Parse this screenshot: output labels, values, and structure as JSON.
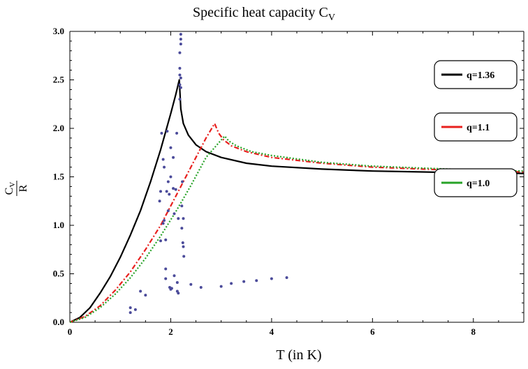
{
  "chart_data": {
    "type": "line",
    "title": "Specific heat capacity C",
    "title_subscript": "V",
    "xlabel": "T (in K)",
    "ylabel_numerator": "C",
    "ylabel_numerator_sub": "V",
    "ylabel_denominator": "R",
    "xlim": [
      0,
      9
    ],
    "ylim": [
      0,
      3.0
    ],
    "xticks": [
      0,
      2,
      4,
      6,
      8
    ],
    "yticks": [
      0.0,
      0.5,
      1.0,
      1.5,
      2.0,
      2.5,
      3.0
    ],
    "ytick_labels": [
      "0.0",
      "0.5",
      "1.0",
      "1.5",
      "2.0",
      "2.5",
      "3.0"
    ],
    "grid": false,
    "legend_position": "right",
    "series": [
      {
        "name": "q=1.36",
        "color": "#000000",
        "style": "solid",
        "x": [
          0,
          0.2,
          0.4,
          0.6,
          0.8,
          1.0,
          1.2,
          1.4,
          1.6,
          1.8,
          2.0,
          2.1,
          2.17,
          2.2,
          2.25,
          2.35,
          2.5,
          2.7,
          3.0,
          3.5,
          4.0,
          5.0,
          6.0,
          7.0,
          8.0,
          9.0
        ],
        "y": [
          0,
          0.05,
          0.15,
          0.3,
          0.47,
          0.67,
          0.9,
          1.15,
          1.45,
          1.78,
          2.15,
          2.35,
          2.5,
          2.2,
          2.05,
          1.93,
          1.83,
          1.76,
          1.7,
          1.64,
          1.61,
          1.58,
          1.56,
          1.55,
          1.54,
          1.535
        ]
      },
      {
        "name": "q=1.1",
        "color": "#e8201e",
        "style": "dashdot",
        "x": [
          0,
          0.3,
          0.6,
          0.9,
          1.2,
          1.5,
          1.8,
          2.1,
          2.4,
          2.7,
          2.87,
          2.95,
          3.05,
          3.2,
          3.5,
          4.0,
          5.0,
          6.0,
          7.0,
          8.0,
          9.0
        ],
        "y": [
          0,
          0.06,
          0.17,
          0.33,
          0.52,
          0.75,
          1.0,
          1.3,
          1.6,
          1.9,
          2.05,
          1.95,
          1.88,
          1.82,
          1.76,
          1.7,
          1.64,
          1.6,
          1.58,
          1.565,
          1.55
        ]
      },
      {
        "name": "q=1.0",
        "color": "#27a327",
        "style": "dotted",
        "x": [
          0,
          0.3,
          0.6,
          0.9,
          1.2,
          1.5,
          1.8,
          2.1,
          2.4,
          2.7,
          3.0,
          3.07,
          3.15,
          3.3,
          3.6,
          4.0,
          5.0,
          6.0,
          7.0,
          8.0,
          9.0
        ],
        "y": [
          0,
          0.05,
          0.15,
          0.29,
          0.46,
          0.66,
          0.89,
          1.14,
          1.41,
          1.7,
          1.88,
          1.92,
          1.87,
          1.82,
          1.76,
          1.72,
          1.65,
          1.61,
          1.59,
          1.57,
          1.56
        ]
      }
    ],
    "scatter": {
      "color": "#4b4b9a",
      "points": [
        [
          1.2,
          0.1
        ],
        [
          1.2,
          0.15
        ],
        [
          1.3,
          0.13
        ],
        [
          1.4,
          0.32
        ],
        [
          1.5,
          0.28
        ],
        [
          1.8,
          0.84
        ],
        [
          1.8,
          1.35
        ],
        [
          1.78,
          1.25
        ],
        [
          1.82,
          1.95
        ],
        [
          1.85,
          1.68
        ],
        [
          1.85,
          1.02
        ],
        [
          1.87,
          1.05
        ],
        [
          1.87,
          1.6
        ],
        [
          1.9,
          0.55
        ],
        [
          1.9,
          0.45
        ],
        [
          1.9,
          0.85
        ],
        [
          1.92,
          1.35
        ],
        [
          1.93,
          1.97
        ],
        [
          1.95,
          1.15
        ],
        [
          1.95,
          1.45
        ],
        [
          1.97,
          1.32
        ],
        [
          1.98,
          0.36
        ],
        [
          2.0,
          1.5
        ],
        [
          2.0,
          0.34
        ],
        [
          2.0,
          1.8
        ],
        [
          2.02,
          0.35
        ],
        [
          2.05,
          1.7
        ],
        [
          2.05,
          1.38
        ],
        [
          2.07,
          1.12
        ],
        [
          2.07,
          0.48
        ],
        [
          2.1,
          1.37
        ],
        [
          2.12,
          1.95
        ],
        [
          2.13,
          0.32
        ],
        [
          2.13,
          0.41
        ],
        [
          2.15,
          0.3
        ],
        [
          2.15,
          1.07
        ],
        [
          2.18,
          2.3
        ],
        [
          2.18,
          2.45
        ],
        [
          2.18,
          2.55
        ],
        [
          2.18,
          2.62
        ],
        [
          2.18,
          2.78
        ],
        [
          2.2,
          2.92
        ],
        [
          2.2,
          2.97
        ],
        [
          2.2,
          2.87
        ],
        [
          2.2,
          2.42
        ],
        [
          2.2,
          2.52
        ],
        [
          2.22,
          1.2
        ],
        [
          2.22,
          0.97
        ],
        [
          2.23,
          1.45
        ],
        [
          2.24,
          0.82
        ],
        [
          2.25,
          1.07
        ],
        [
          2.25,
          0.78
        ],
        [
          2.26,
          0.68
        ],
        [
          2.4,
          0.39
        ],
        [
          2.6,
          0.36
        ],
        [
          3.0,
          0.37
        ],
        [
          3.2,
          0.4
        ],
        [
          3.45,
          0.42
        ],
        [
          3.7,
          0.43
        ],
        [
          4.0,
          0.45
        ],
        [
          4.3,
          0.46
        ]
      ]
    }
  }
}
